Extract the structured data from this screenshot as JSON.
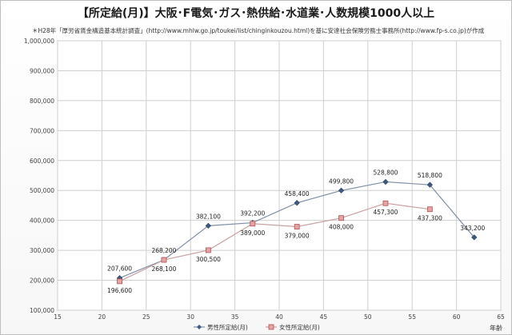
{
  "title": "【所定給(月)】大阪･F電気･ガス･熱供給･水道業･人数規模1000人以上",
  "source_note": "＊H28年「厚労省賃金構造基本統計調査」(http://www.mhlw.go.jp/toukei/list/chinginkouzou.html)を基に安達社会保険労務士事務所(http://www.fp-s.co.jp)が作成",
  "chart_data": {
    "type": "line",
    "xlabel": "年齢",
    "ylabel": "",
    "xlim": [
      15,
      65
    ],
    "ylim": [
      100000,
      1000000
    ],
    "xticks": [
      15,
      20,
      25,
      30,
      35,
      40,
      45,
      50,
      55,
      60,
      65
    ],
    "yticks": [
      100000,
      200000,
      300000,
      400000,
      500000,
      600000,
      700000,
      800000,
      900000,
      1000000
    ],
    "ytick_labels": [
      "100,000",
      "200,000",
      "300,000",
      "400,000",
      "500,000",
      "600,000",
      "700,000",
      "800,000",
      "900,000",
      "1,000,000"
    ],
    "grid": true,
    "legend_position": "bottom",
    "series": [
      {
        "name": "男性所定給(月)",
        "color": "#3d5a80",
        "marker": "diamond",
        "x": [
          22,
          27,
          32,
          37,
          42,
          47,
          52,
          57,
          62
        ],
        "values": [
          207600,
          268200,
          382100,
          392200,
          458400,
          499800,
          528800,
          518800,
          343200
        ],
        "labels": [
          "207,600",
          "268,200",
          "382,100",
          "392,200",
          "458,400",
          "499,800",
          "528,800",
          "518,800",
          "343,200"
        ]
      },
      {
        "name": "女性所定給(月)",
        "color": "#d07a7a",
        "marker": "square",
        "x": [
          22,
          27,
          32,
          37,
          42,
          47,
          52,
          57
        ],
        "values": [
          196600,
          268100,
          300500,
          389000,
          379000,
          408000,
          457300,
          437300
        ],
        "labels": [
          "196,600",
          "268,100",
          "300,500",
          "389,000",
          "379,000",
          "408,000",
          "457,300",
          "437,300"
        ]
      }
    ]
  }
}
